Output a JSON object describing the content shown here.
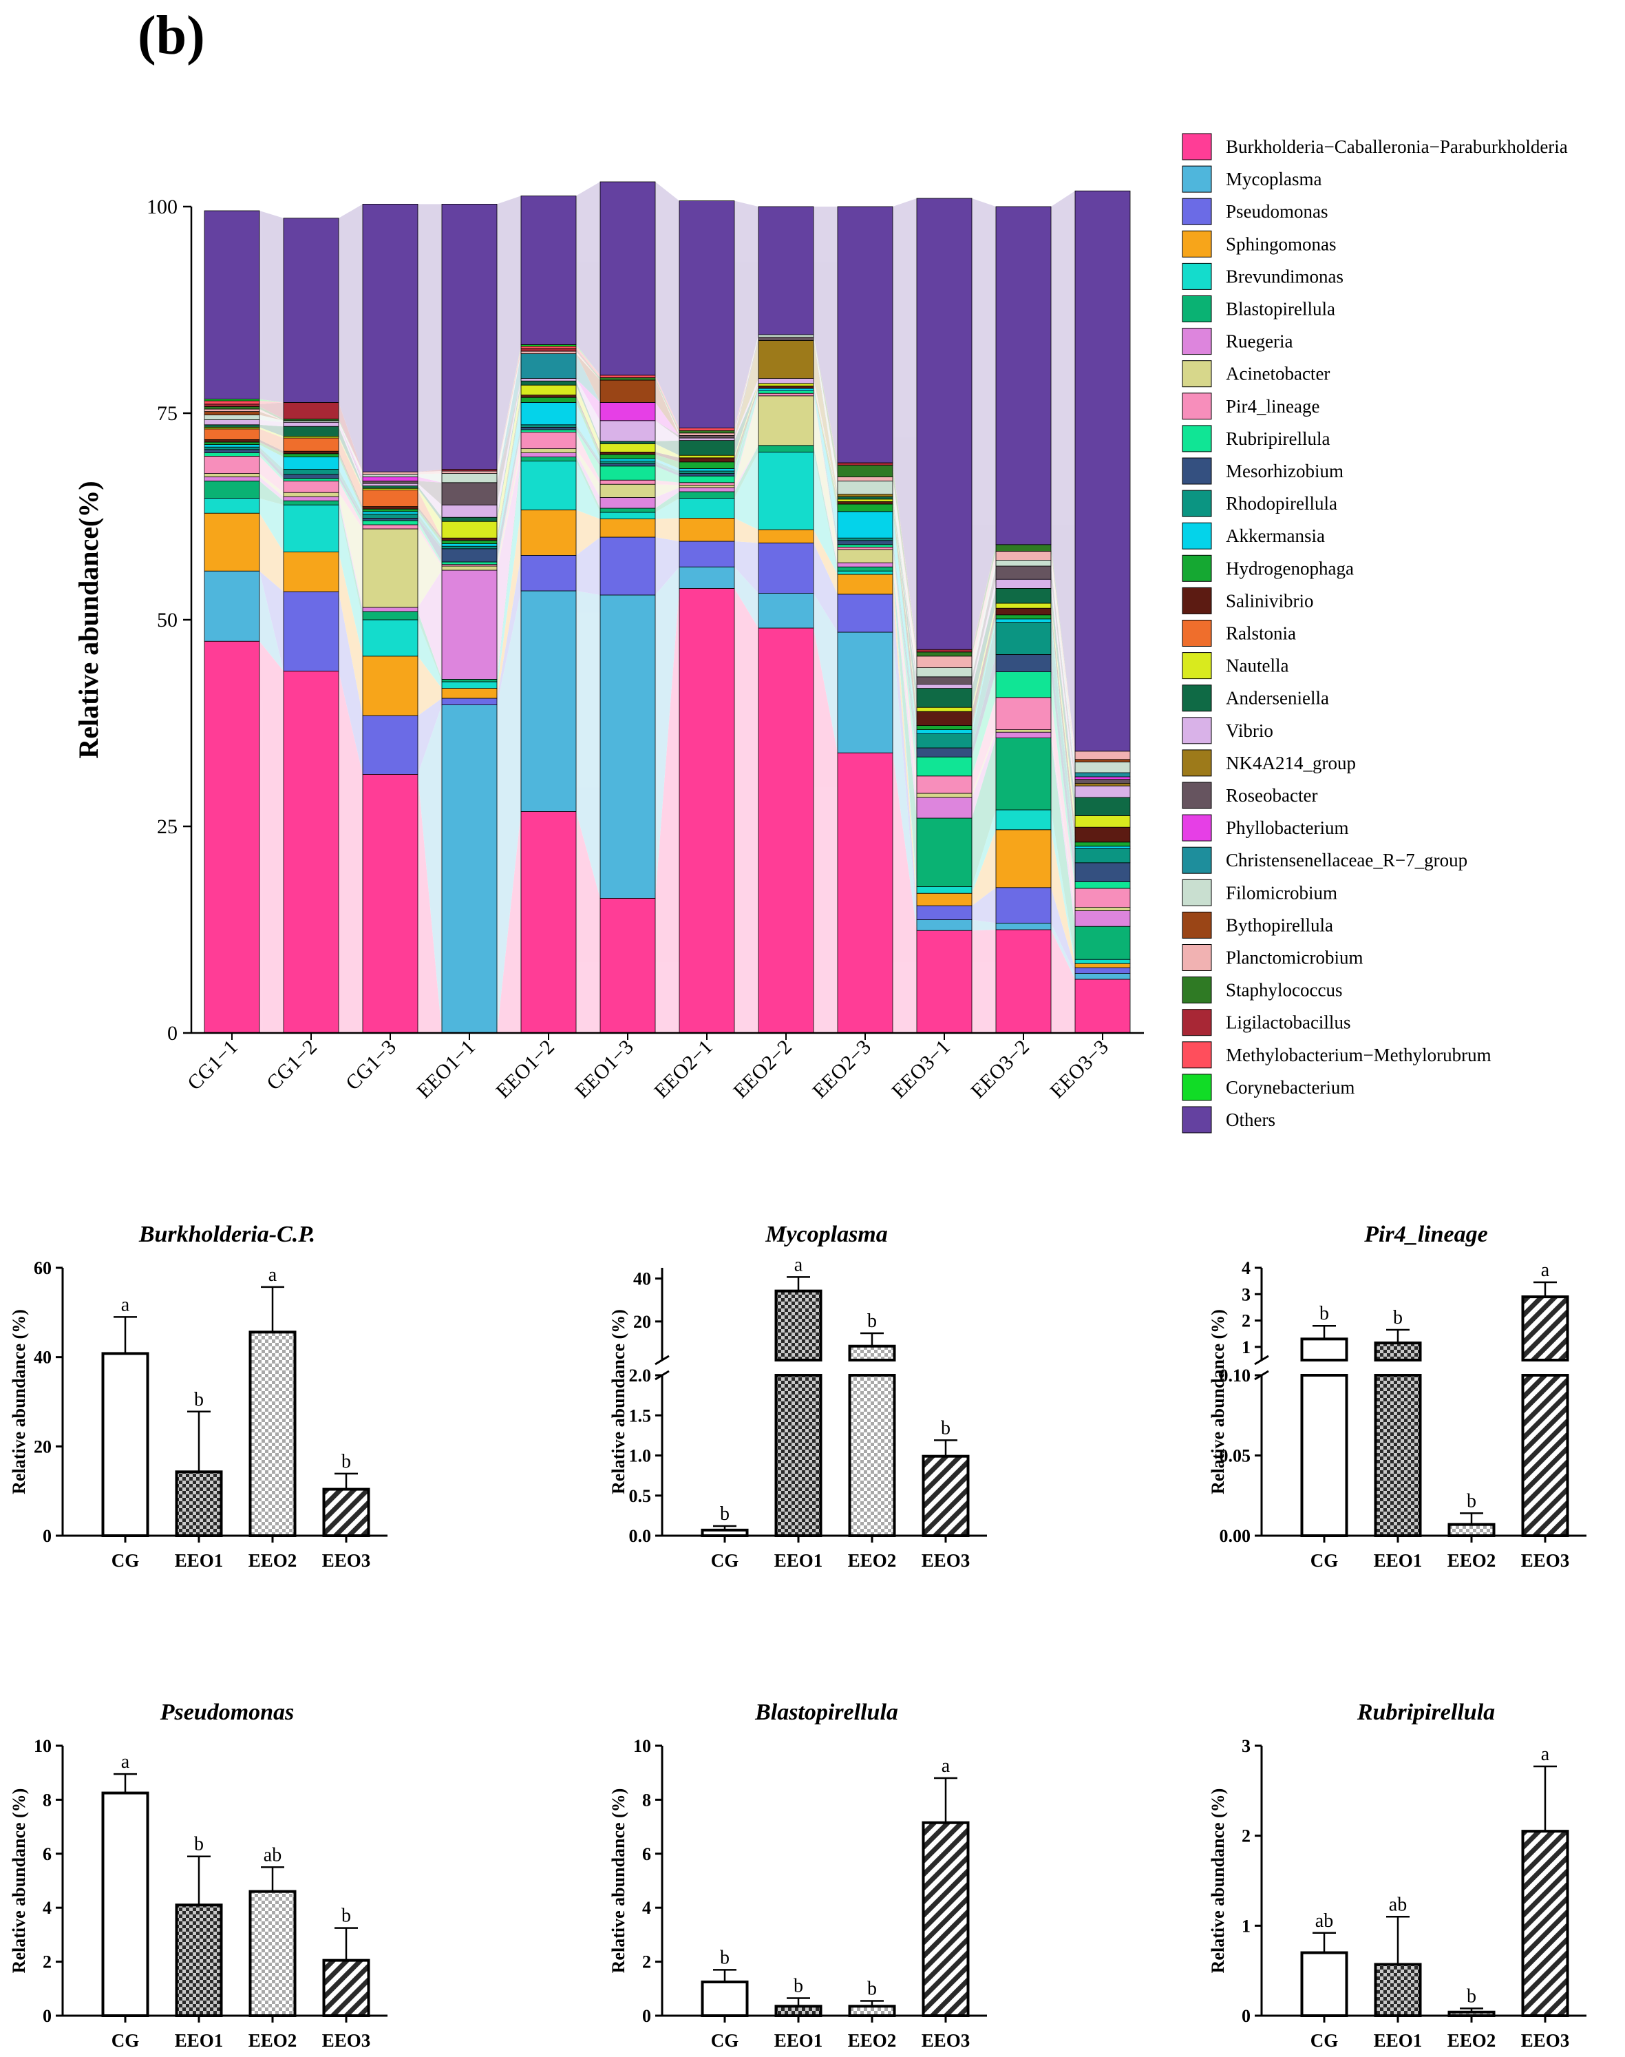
{
  "panel_label": "(b)",
  "colors": {
    "taxa": [
      "#ff3d96",
      "#4fb6dc",
      "#6b6be6",
      "#f7a51a",
      "#14dccc",
      "#0ab273",
      "#dd85dd",
      "#d7d78b",
      "#f78ebb",
      "#10e595",
      "#345080",
      "#0b9582",
      "#04d3ea",
      "#15a832",
      "#5c1b12",
      "#ef6e2c",
      "#d9ea1e",
      "#0f6a45",
      "#d9b2e8",
      "#9d7a1a",
      "#66545f",
      "#e63fe6",
      "#1e8e9c",
      "#c9dfd0",
      "#9a4516",
      "#f1b2b2",
      "#2f7a24",
      "#a82735",
      "#ff4e5c",
      "#11dc26",
      "#6441a0"
    ],
    "ribbon": "#e5dfee",
    "error_bar": "#000000"
  },
  "chart_data": [
    {
      "type": "stacked-bar",
      "title": "",
      "ylabel": "Relative abundance(%)",
      "ylim": [
        0,
        100
      ],
      "yticks": [
        0,
        25,
        50,
        75,
        100
      ],
      "legend_position": "right",
      "legend": [
        "Burkholderia−Caballeronia−Paraburkholderia",
        "Mycoplasma",
        "Pseudomonas",
        "Sphingomonas",
        "Brevundimonas",
        "Blastopirellula",
        "Ruegeria",
        "Acinetobacter",
        "Pir4_lineage",
        "Rubripirellula",
        "Mesorhizobium",
        "Rhodopirellula",
        "Akkermansia",
        "Hydrogenophaga",
        "Salinivibrio",
        "Ralstonia",
        "Nautella",
        "Anderseniella",
        "Vibrio",
        "NK4A214_group",
        "Roseobacter",
        "Phyllobacterium",
        "Christensenellaceae_R−7_group",
        "Filomicrobium",
        "Bythopirellula",
        "Planctomicrobium",
        "Staphylococcus",
        "Ligilactobacillus",
        "Methylobacterium−Methylorubrum",
        "Corynebacterium",
        "Others"
      ],
      "categories": [
        "CG1−1",
        "CG1−2",
        "CG1−3",
        "EEO1−1",
        "EEO1−2",
        "EEO1−3",
        "EEO2−1",
        "EEO2−2",
        "EEO2−3",
        "EEO3−1",
        "EEO3−2",
        "EEO3−3"
      ],
      "samples": [
        [
          47.4,
          8.5,
          0,
          7.0,
          1.8,
          2.1,
          0.5,
          0.4,
          2.1,
          0.4,
          0.4,
          0.3,
          0.3,
          0.3,
          0.3,
          1.3,
          0.2,
          0.3,
          0.6,
          0,
          0,
          0,
          0,
          0.6,
          0.4,
          0.3,
          0.3,
          0.3,
          0.4,
          0.2,
          22.8
        ],
        [
          43.8,
          0,
          9.6,
          4.8,
          5.7,
          0.5,
          0.5,
          0.5,
          1.4,
          0.3,
          0.5,
          0.6,
          1.5,
          0.4,
          0.3,
          1.6,
          0.2,
          1.2,
          0.5,
          0,
          0,
          0,
          0,
          0.2,
          0,
          0,
          0.2,
          2.0,
          0,
          0,
          22.3
        ],
        [
          31.3,
          0,
          7.1,
          7.2,
          4.4,
          1.0,
          0.5,
          9.5,
          0.5,
          0.5,
          0.3,
          0.5,
          0.3,
          0.3,
          0.3,
          2.0,
          0.2,
          0.3,
          0.3,
          0,
          0.3,
          0.5,
          0,
          0.3,
          0,
          0.3,
          0,
          0,
          0,
          0,
          32.4
        ],
        [
          0,
          39.7,
          0.8,
          1.2,
          0.8,
          0.3,
          13.2,
          0.5,
          0.2,
          0.3,
          1.6,
          0.3,
          0.3,
          0.4,
          0.3,
          0,
          2.0,
          0.5,
          1.5,
          0,
          2.7,
          0,
          0,
          1.1,
          0,
          0.3,
          0,
          0.2,
          0,
          0,
          32.1
        ],
        [
          26.8,
          26.7,
          4.3,
          5.5,
          5.9,
          0.5,
          0.5,
          0.5,
          2.0,
          0.3,
          0.3,
          0.3,
          2.7,
          0.6,
          0.3,
          0,
          1.2,
          0.5,
          0.3,
          0,
          0,
          0,
          3.0,
          0,
          0,
          0.3,
          0,
          0.3,
          0.3,
          0.2,
          18.0
        ],
        [
          16.3,
          36.7,
          7.0,
          2.2,
          0.8,
          0.5,
          1.3,
          1.6,
          0.5,
          1.7,
          0.3,
          0.3,
          0.3,
          0.5,
          0.3,
          0,
          1.0,
          0.3,
          2.5,
          0,
          0,
          2.2,
          0,
          0,
          2.7,
          0,
          0.3,
          0,
          0.3,
          0,
          23.4
        ],
        [
          53.8,
          2.6,
          3.1,
          2.8,
          2.4,
          0.8,
          0.5,
          0.3,
          0.3,
          0.8,
          0.3,
          0.3,
          0.3,
          0.8,
          0.5,
          0,
          0.3,
          1.8,
          0.3,
          0,
          0.3,
          0,
          0,
          0,
          0,
          0.3,
          0.3,
          0,
          0.3,
          0,
          27.5
        ],
        [
          49.0,
          4.2,
          6.1,
          1.6,
          9.4,
          0.8,
          0,
          6.0,
          0.3,
          0.3,
          0,
          0,
          0.3,
          0,
          0.3,
          0,
          0.3,
          0,
          0.6,
          4.6,
          0.4,
          0,
          0,
          0.3,
          0,
          0,
          0,
          0,
          0,
          0,
          15.5
        ],
        [
          33.9,
          14.6,
          4.6,
          2.4,
          0.4,
          0.5,
          0.5,
          1.6,
          0.3,
          0.3,
          0.5,
          0.3,
          3.2,
          0.9,
          0.3,
          0,
          0.3,
          0.3,
          0,
          0.3,
          0,
          0,
          0,
          1.6,
          0,
          0.5,
          1.4,
          0.3,
          0,
          0,
          31.0
        ],
        [
          12.4,
          1.3,
          1.7,
          1.5,
          0.8,
          8.3,
          2.5,
          0.5,
          2.1,
          2.3,
          1.1,
          1.7,
          0.5,
          0.5,
          1.7,
          0,
          0.5,
          2.3,
          0.5,
          0,
          0.9,
          0,
          0,
          1.1,
          0,
          1.4,
          0.5,
          0.3,
          0,
          0,
          54.6
        ],
        [
          12.5,
          0.8,
          4.3,
          7.0,
          2.4,
          8.7,
          0.7,
          0.3,
          3.9,
          3.1,
          2.1,
          3.9,
          0.4,
          0.5,
          0.8,
          0,
          0.6,
          1.8,
          1.1,
          0,
          1.6,
          0,
          0,
          0.7,
          0,
          1.1,
          0.8,
          0,
          0,
          0,
          40.9
        ],
        [
          6.5,
          0.7,
          0.7,
          0.5,
          0.5,
          4.0,
          1.9,
          0.4,
          2.3,
          0.8,
          2.3,
          1.7,
          0.3,
          0.5,
          1.8,
          0,
          1.4,
          2.2,
          1.4,
          0.3,
          0.5,
          0.3,
          0.5,
          1.3,
          0.3,
          1.0,
          0,
          0,
          0,
          0,
          67.8
        ]
      ]
    },
    {
      "type": "bar",
      "title": "Burkholderia-C.P.",
      "ylabel": "Relative abundance (%)",
      "categories": [
        "CG",
        "EEO1",
        "EEO2",
        "EEO3"
      ],
      "values": [
        40.8,
        14.3,
        45.6,
        10.4
      ],
      "errors": [
        8.2,
        13.5,
        10.1,
        3.5
      ],
      "letters": [
        "a",
        "b",
        "a",
        "b"
      ],
      "ylim": [
        0,
        60
      ],
      "yticks": [
        0,
        20,
        40,
        60
      ]
    },
    {
      "type": "bar",
      "title": "Mycoplasma",
      "ylabel": "Relative abundance (%)",
      "categories": [
        "CG",
        "EEO1",
        "EEO2",
        "EEO3"
      ],
      "values": [
        0.07,
        34.2,
        8.5,
        0.99
      ],
      "errors": [
        0.05,
        6.5,
        6.0,
        0.2
      ],
      "letters": [
        "b",
        "a",
        "b",
        "b"
      ],
      "broken_axis": true,
      "lower": {
        "ylim": [
          0,
          2.0
        ],
        "yticks": [
          "0.0",
          "0.5",
          "1.0",
          "1.5",
          "2.0"
        ]
      },
      "upper": {
        "ylim": [
          2,
          45
        ],
        "yticks": [
          "20",
          "40"
        ]
      }
    },
    {
      "type": "bar",
      "title": "Pir4_lineage",
      "ylabel": "Relative abundance (%)",
      "categories": [
        "CG",
        "EEO1",
        "EEO2",
        "EEO3"
      ],
      "values": [
        1.3,
        1.15,
        0.007,
        2.9
      ],
      "errors": [
        0.5,
        0.5,
        0.007,
        0.55
      ],
      "letters": [
        "b",
        "b",
        "b",
        "a"
      ],
      "broken_axis": true,
      "lower": {
        "ylim": [
          0,
          0.1
        ],
        "yticks": [
          "0.00",
          "0.05",
          "0.10"
        ]
      },
      "upper": {
        "ylim": [
          0.5,
          4
        ],
        "yticks": [
          "1",
          "2",
          "3",
          "4"
        ]
      }
    },
    {
      "type": "bar",
      "title": "Pseudomonas",
      "ylabel": "Relative abundance (%)",
      "categories": [
        "CG",
        "EEO1",
        "EEO2",
        "EEO3"
      ],
      "values": [
        8.25,
        4.1,
        4.6,
        2.05
      ],
      "errors": [
        0.7,
        1.8,
        0.9,
        1.2
      ],
      "letters": [
        "a",
        "b",
        "ab",
        "b"
      ],
      "ylim": [
        0,
        10
      ],
      "yticks": [
        0,
        2,
        4,
        6,
        8,
        10
      ]
    },
    {
      "type": "bar",
      "title": "Blastopirellula",
      "ylabel": "Relative abundance (%)",
      "categories": [
        "CG",
        "EEO1",
        "EEO2",
        "EEO3"
      ],
      "values": [
        1.25,
        0.35,
        0.35,
        7.15
      ],
      "errors": [
        0.45,
        0.3,
        0.2,
        1.65
      ],
      "letters": [
        "b",
        "b",
        "b",
        "a"
      ],
      "ylim": [
        0,
        10
      ],
      "yticks": [
        0,
        2,
        4,
        6,
        8,
        10
      ]
    },
    {
      "type": "bar",
      "title": "Rubripirellula",
      "ylabel": "Relative abundance (%)",
      "categories": [
        "CG",
        "EEO1",
        "EEO2",
        "EEO3"
      ],
      "values": [
        0.7,
        0.57,
        0.04,
        2.05
      ],
      "errors": [
        0.22,
        0.53,
        0.04,
        0.72
      ],
      "letters": [
        "ab",
        "ab",
        "b",
        "a"
      ],
      "ylim": [
        0,
        3
      ],
      "yticks": [
        0,
        1,
        2,
        3
      ]
    }
  ]
}
